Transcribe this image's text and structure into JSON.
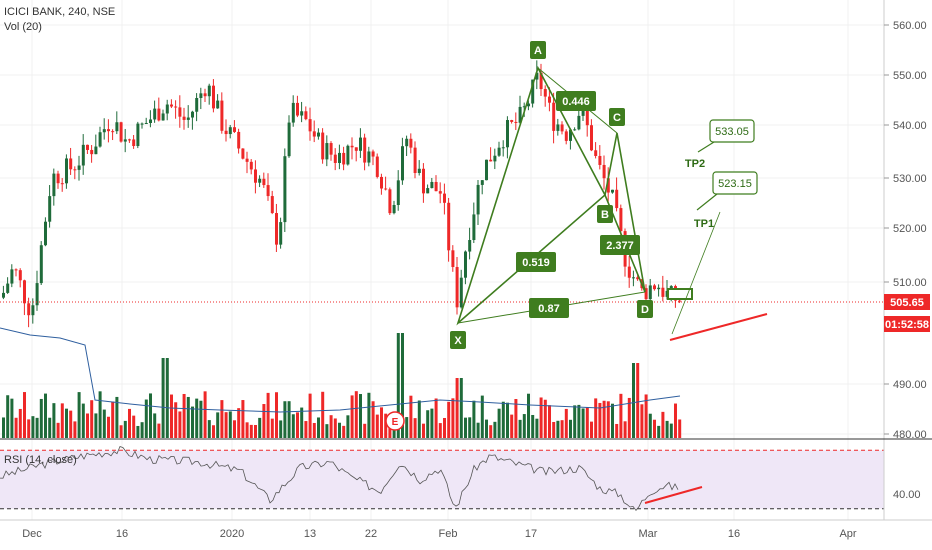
{
  "header": {
    "symbol": "ICICI BANK, 240, NSE",
    "volume_label": "Vol (20)"
  },
  "rsi_label": "RSI (14, close)",
  "price_badge": {
    "value": "505.65",
    "color": "#ee2828"
  },
  "countdown_badge": {
    "value": "01:52:58",
    "color": "#ee2828"
  },
  "colors": {
    "up": "#1f6b3a",
    "down": "#ee2828",
    "pattern": "#3f7d1f",
    "volume_ma": "#2f5f9f",
    "rsi_line": "#555555",
    "rsi_band": "#efe7f7",
    "trendline": "#ee2828"
  },
  "event_marker": {
    "label": "E"
  },
  "chart_data": {
    "type": "candlestick",
    "ylim": [
      478,
      563
    ],
    "price_ticks": [
      "560.00",
      "550.00",
      "540.00",
      "530.00",
      "520.00",
      "510.00",
      "490.00",
      "480.00"
    ],
    "x_ticks": [
      "Dec",
      "16",
      "2020",
      "13",
      "22",
      "Feb",
      "17",
      "Mar",
      "16",
      "Apr"
    ],
    "last_price": 505.65,
    "key_prices": [
      {
        "date": "Dec",
        "price": 505
      },
      {
        "date": "16",
        "price": 543
      },
      {
        "date": "2020",
        "price": 548
      },
      {
        "date": "13",
        "price": 518
      },
      {
        "date": "13",
        "price": 544
      },
      {
        "date": "22",
        "price": 536
      },
      {
        "date": "22",
        "price": 524
      },
      {
        "date": "Feb",
        "price": 502
      },
      {
        "date": "17",
        "price": 551
      },
      {
        "date": "17",
        "price": 541
      },
      {
        "date": "Mar",
        "price": 504
      },
      {
        "date": "Mar",
        "price": 506
      }
    ],
    "harmonic_pattern": {
      "points": [
        {
          "label": "X",
          "price": 502
        },
        {
          "label": "A",
          "price": 551
        },
        {
          "label": "B",
          "price": 526
        },
        {
          "label": "C",
          "price": 538
        },
        {
          "label": "D",
          "price": 508
        }
      ],
      "ratios": [
        "0.519",
        "0.87",
        "0.446",
        "2.377"
      ]
    },
    "targets": [
      {
        "label": "TP1",
        "value": "523.15"
      },
      {
        "label": "TP2",
        "value": "533.05"
      }
    ],
    "rsi": {
      "label": "RSI (14, close)",
      "ticks": [
        "40.00"
      ],
      "ylim": [
        25,
        75
      ],
      "upper": 70,
      "lower": 30
    }
  }
}
